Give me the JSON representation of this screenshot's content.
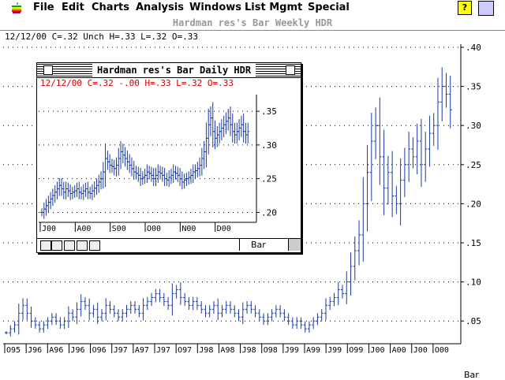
{
  "menubar": {
    "items": [
      "File",
      "Edit",
      "Charts",
      "Analysis",
      "Windows",
      "List Mgmt",
      "Special"
    ],
    "apple_icon": "apple-icon",
    "help_icon_glyph": "?"
  },
  "main_window": {
    "title": "Hardman res's Bar Weekly HDR",
    "info": "12/12/00 C=.32 Unch H=.33 L=.32 O=.33",
    "bar_select": "Bar",
    "chart_data": {
      "type": "bar",
      "subtype": "ohlc",
      "color": "#1a3aa0",
      "y_ticks": [
        ".05",
        ".10",
        ".15",
        ".20",
        ".25",
        ".30",
        ".35",
        ".40"
      ],
      "y_tick_values": [
        0.05,
        0.1,
        0.15,
        0.2,
        0.25,
        0.3,
        0.35,
        0.4
      ],
      "x_ticks": [
        "O95",
        "J96",
        "A96",
        "J96",
        "O96",
        "J97",
        "A97",
        "J97",
        "O97",
        "J98",
        "A98",
        "J98",
        "O98",
        "J99",
        "A99",
        "J99",
        "O99",
        "J00",
        "A00",
        "J00",
        "O00"
      ],
      "grid": true,
      "close_series": [
        0.035,
        0.04,
        0.045,
        0.06,
        0.07,
        0.06,
        0.05,
        0.045,
        0.04,
        0.045,
        0.05,
        0.055,
        0.05,
        0.045,
        0.05,
        0.06,
        0.055,
        0.065,
        0.075,
        0.07,
        0.06,
        0.065,
        0.055,
        0.06,
        0.07,
        0.065,
        0.06,
        0.055,
        0.06,
        0.065,
        0.07,
        0.065,
        0.06,
        0.07,
        0.075,
        0.08,
        0.085,
        0.08,
        0.075,
        0.07,
        0.085,
        0.09,
        0.08,
        0.075,
        0.07,
        0.075,
        0.07,
        0.065,
        0.06,
        0.065,
        0.07,
        0.06,
        0.065,
        0.07,
        0.065,
        0.06,
        0.055,
        0.065,
        0.07,
        0.065,
        0.06,
        0.055,
        0.05,
        0.055,
        0.06,
        0.065,
        0.06,
        0.055,
        0.05,
        0.045,
        0.05,
        0.045,
        0.04,
        0.045,
        0.05,
        0.055,
        0.06,
        0.07,
        0.075,
        0.08,
        0.09,
        0.085,
        0.1,
        0.12,
        0.14,
        0.16,
        0.2,
        0.24,
        0.28,
        0.3,
        0.26,
        0.22,
        0.24,
        0.21,
        0.2,
        0.23,
        0.25,
        0.27,
        0.26,
        0.28,
        0.25,
        0.27,
        0.29,
        0.3,
        0.33,
        0.35,
        0.34,
        0.32
      ]
    }
  },
  "daily_window": {
    "title": "Hardman res's Bar Daily HDR",
    "info": "12/12/00 C=.32 -.00 H=.33 L=.32 O=.33",
    "bar_select": "Bar",
    "chart_data": {
      "type": "bar",
      "subtype": "ohlc",
      "color": "#1a3aa0",
      "y_ticks": [
        ".20",
        ".25",
        ".30",
        ".35"
      ],
      "y_tick_values": [
        0.2,
        0.25,
        0.3,
        0.35
      ],
      "x_ticks": [
        "J00",
        "A00",
        "S00",
        "O00",
        "N00",
        "D00"
      ],
      "grid": true,
      "close_series": [
        0.2,
        0.205,
        0.21,
        0.215,
        0.22,
        0.225,
        0.23,
        0.235,
        0.24,
        0.235,
        0.23,
        0.235,
        0.232,
        0.228,
        0.23,
        0.232,
        0.235,
        0.23,
        0.228,
        0.232,
        0.235,
        0.23,
        0.228,
        0.232,
        0.236,
        0.24,
        0.245,
        0.25,
        0.26,
        0.28,
        0.275,
        0.27,
        0.268,
        0.265,
        0.27,
        0.28,
        0.29,
        0.285,
        0.28,
        0.275,
        0.27,
        0.265,
        0.26,
        0.258,
        0.255,
        0.25,
        0.252,
        0.255,
        0.26,
        0.258,
        0.255,
        0.25,
        0.255,
        0.26,
        0.258,
        0.255,
        0.25,
        0.248,
        0.252,
        0.255,
        0.26,
        0.258,
        0.255,
        0.25,
        0.245,
        0.248,
        0.25,
        0.252,
        0.255,
        0.26,
        0.262,
        0.265,
        0.27,
        0.28,
        0.29,
        0.31,
        0.33,
        0.34,
        0.32,
        0.31,
        0.315,
        0.32,
        0.325,
        0.33,
        0.335,
        0.34,
        0.33,
        0.32,
        0.315,
        0.32,
        0.325,
        0.33,
        0.32,
        0.315,
        0.32
      ]
    }
  }
}
